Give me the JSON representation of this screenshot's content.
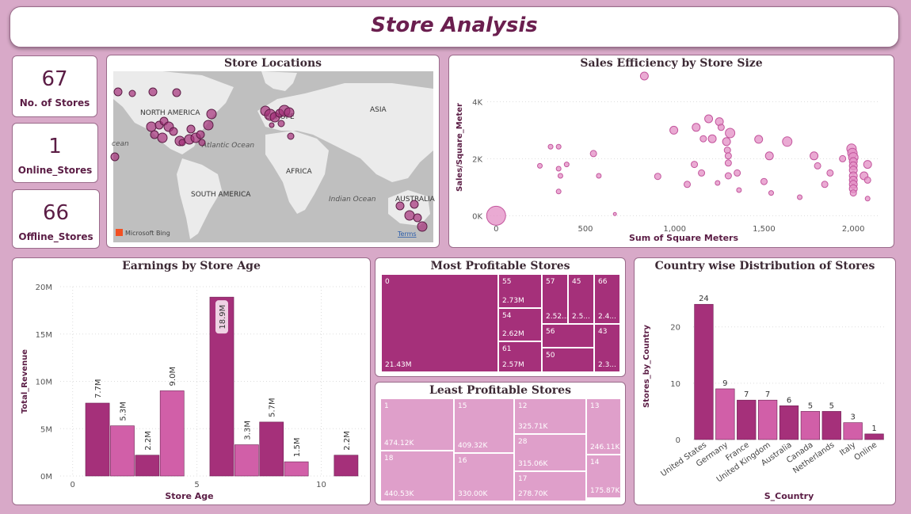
{
  "page_title": "Store Analysis",
  "kpis": [
    {
      "value": "67",
      "label": "No. of Stores"
    },
    {
      "value": "1",
      "label": "Online_Stores"
    },
    {
      "value": "66",
      "label": "Offline_Stores"
    }
  ],
  "map": {
    "title": "Store Locations",
    "labels": [
      "NORTH AMERICA",
      "EUROPE",
      "ASIA",
      "Atlantic Ocean",
      "AFRICA",
      "SOUTH AMERICA",
      "Indian Ocean",
      "AUSTRALIA",
      "cean"
    ],
    "attribution": "Microsoft Bing",
    "terms": "Terms"
  },
  "colors": {
    "primary": "#a5307a",
    "secondary": "#d15fa8",
    "light": "#df9fca",
    "bg": "#d8a9c8",
    "title": "#6b1f4f"
  },
  "chart_data": [
    {
      "id": "scatter",
      "type": "scatter",
      "title": "Sales Efficiency by Store Size",
      "xlabel": "Sum of Square Meters",
      "ylabel": "Sales/Square_Meter",
      "xlim": [
        -50,
        2150
      ],
      "ylim": [
        -100,
        4900
      ],
      "xticks": [
        {
          "v": 0,
          "l": "0"
        },
        {
          "v": 500,
          "l": "500"
        },
        {
          "v": 1000,
          "l": "1,000"
        },
        {
          "v": 1500,
          "l": "1,500"
        },
        {
          "v": 2000,
          "l": "2,000"
        }
      ],
      "yticks": [
        {
          "v": 0,
          "l": "0K"
        },
        {
          "v": 2000,
          "l": "2K"
        },
        {
          "v": 4000,
          "l": "4K"
        }
      ],
      "points": [
        [
          0,
          0,
          12
        ],
        [
          665,
          60,
          2
        ],
        [
          830,
          4900,
          5
        ],
        [
          245,
          1750,
          3
        ],
        [
          305,
          2420,
          3
        ],
        [
          350,
          2420,
          3
        ],
        [
          350,
          1650,
          3
        ],
        [
          360,
          1400,
          3
        ],
        [
          350,
          850,
          3
        ],
        [
          395,
          1800,
          3
        ],
        [
          545,
          2180,
          4
        ],
        [
          575,
          1400,
          3
        ],
        [
          905,
          1380,
          4
        ],
        [
          995,
          3000,
          5
        ],
        [
          1070,
          1100,
          4
        ],
        [
          1110,
          1800,
          4
        ],
        [
          1120,
          3100,
          5
        ],
        [
          1150,
          1500,
          4
        ],
        [
          1160,
          2700,
          4
        ],
        [
          1190,
          3400,
          5
        ],
        [
          1210,
          2700,
          5
        ],
        [
          1240,
          1150,
          3
        ],
        [
          1250,
          3300,
          5
        ],
        [
          1260,
          3100,
          4
        ],
        [
          1290,
          2600,
          5
        ],
        [
          1295,
          2300,
          4
        ],
        [
          1300,
          1850,
          4
        ],
        [
          1300,
          2100,
          4
        ],
        [
          1300,
          1400,
          4
        ],
        [
          1310,
          2900,
          6
        ],
        [
          1350,
          1500,
          4
        ],
        [
          1360,
          900,
          3
        ],
        [
          1470,
          2680,
          5
        ],
        [
          1500,
          1200,
          4
        ],
        [
          1530,
          2100,
          5
        ],
        [
          1540,
          800,
          3
        ],
        [
          1630,
          2600,
          6
        ],
        [
          1700,
          650,
          3
        ],
        [
          1780,
          2100,
          5
        ],
        [
          1800,
          1750,
          4
        ],
        [
          1840,
          1100,
          4
        ],
        [
          1870,
          1500,
          4
        ],
        [
          1940,
          2000,
          4
        ],
        [
          1990,
          2350,
          6
        ],
        [
          1995,
          2200,
          6
        ],
        [
          2000,
          2050,
          6
        ],
        [
          2000,
          1900,
          5
        ],
        [
          2000,
          1750,
          5
        ],
        [
          2000,
          1600,
          5
        ],
        [
          2000,
          1400,
          5
        ],
        [
          2000,
          1250,
          5
        ],
        [
          2000,
          1100,
          5
        ],
        [
          2000,
          950,
          5
        ],
        [
          2000,
          800,
          4
        ],
        [
          2060,
          1400,
          5
        ],
        [
          2080,
          1800,
          5
        ],
        [
          2080,
          1250,
          4
        ],
        [
          2080,
          600,
          3
        ]
      ]
    },
    {
      "id": "earnings",
      "type": "bar",
      "title": "Earnings by Store Age",
      "xlabel": "Store Age",
      "ylabel": "Total_Revenue",
      "xlim": [
        -0.5,
        11.8
      ],
      "ylim": [
        0,
        20
      ],
      "xticks": [
        0,
        5,
        10
      ],
      "yticks": [
        {
          "v": 0,
          "l": "0M"
        },
        {
          "v": 5,
          "l": "5M"
        },
        {
          "v": 10,
          "l": "10M"
        },
        {
          "v": 15,
          "l": "15M"
        },
        {
          "v": 20,
          "l": "20M"
        }
      ],
      "x": [
        1,
        2,
        3,
        4,
        6,
        7,
        8,
        9,
        11
      ],
      "values": [
        7.7,
        5.3,
        2.2,
        9.0,
        18.9,
        3.3,
        5.7,
        1.5,
        2.2
      ],
      "labels": [
        "7.7M",
        "5.3M",
        "2.2M",
        "9.0M",
        "18.9M",
        "3.3M",
        "5.7M",
        "1.5M",
        "2.2M"
      ],
      "shades": [
        "primary",
        "secondary",
        "primary",
        "secondary",
        "primary",
        "secondary",
        "primary",
        "secondary",
        "primary"
      ]
    },
    {
      "id": "most",
      "type": "table",
      "title": "Most Profitable Stores",
      "cells": [
        {
          "name": "0",
          "value": "21.43M"
        },
        {
          "name": "55",
          "value": "2.73M"
        },
        {
          "name": "54",
          "value": "2.62M"
        },
        {
          "name": "61",
          "value": "2.57M"
        },
        {
          "name": "57",
          "value": "2.52..."
        },
        {
          "name": "45",
          "value": "2.5..."
        },
        {
          "name": "66",
          "value": "2.4..."
        },
        {
          "name": "56",
          "value": ""
        },
        {
          "name": "50",
          "value": ""
        },
        {
          "name": "43",
          "value": "2.3..."
        }
      ]
    },
    {
      "id": "least",
      "type": "table",
      "title": "Least Profitable Stores",
      "cells": [
        {
          "name": "1",
          "value": "474.12K"
        },
        {
          "name": "18",
          "value": "440.53K"
        },
        {
          "name": "15",
          "value": "409.32K"
        },
        {
          "name": "16",
          "value": "330.00K"
        },
        {
          "name": "12",
          "value": "325.71K"
        },
        {
          "name": "28",
          "value": "315.06K"
        },
        {
          "name": "17",
          "value": "278.70K"
        },
        {
          "name": "13",
          "value": "246.11K"
        },
        {
          "name": "14",
          "value": "175.87K"
        }
      ]
    },
    {
      "id": "country",
      "type": "bar",
      "title": "Country wise Distribution of Stores",
      "xlabel": "S_Country",
      "ylabel": "Stores_by_Country",
      "ylim": [
        0,
        26
      ],
      "yticks": [
        0,
        10,
        20
      ],
      "categories": [
        "United States",
        "Germany",
        "France",
        "United Kingdom",
        "Australia",
        "Canada",
        "Netherlands",
        "Italy",
        "Online"
      ],
      "values": [
        24,
        9,
        7,
        7,
        6,
        5,
        5,
        3,
        1
      ],
      "shades": [
        "primary",
        "secondary",
        "primary",
        "secondary",
        "primary",
        "secondary",
        "primary",
        "secondary",
        "primary"
      ]
    }
  ]
}
